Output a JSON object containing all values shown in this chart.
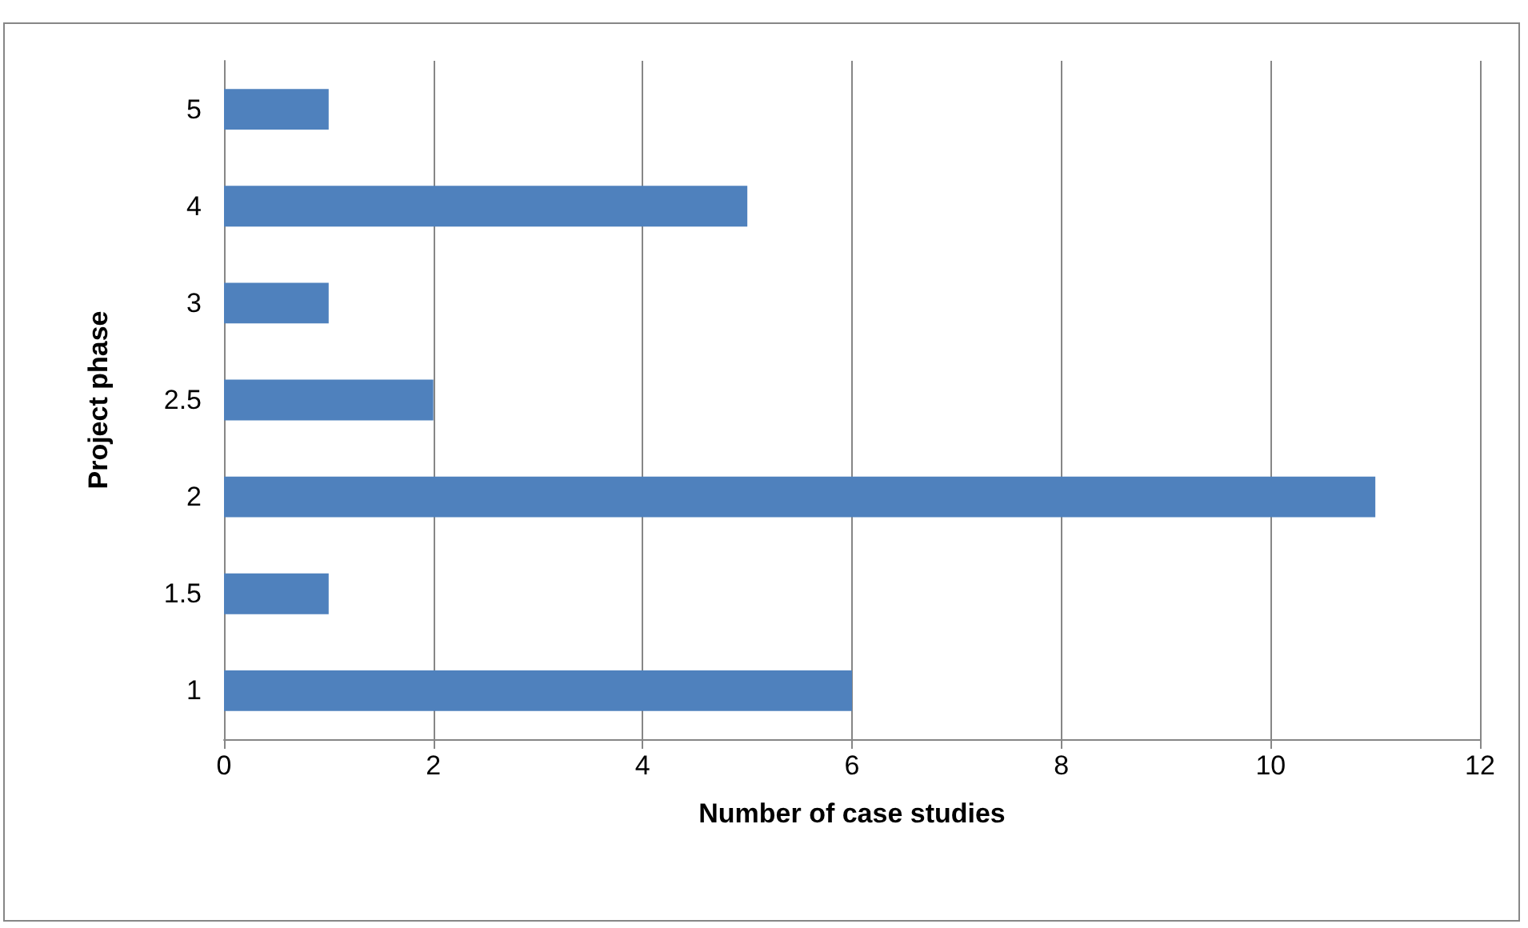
{
  "chart_data": {
    "type": "bar",
    "orientation": "horizontal",
    "categories": [
      "5",
      "4",
      "3",
      "2.5",
      "2",
      "1.5",
      "1"
    ],
    "values": [
      1,
      5,
      1,
      2,
      11,
      1,
      6
    ],
    "color": "#4f81bd",
    "xlim": [
      0,
      12
    ],
    "xticks": [
      0,
      2,
      4,
      6,
      8,
      10,
      12
    ],
    "grid": "x",
    "xlabel": "Number of case studies",
    "ylabel": "Project phase"
  }
}
